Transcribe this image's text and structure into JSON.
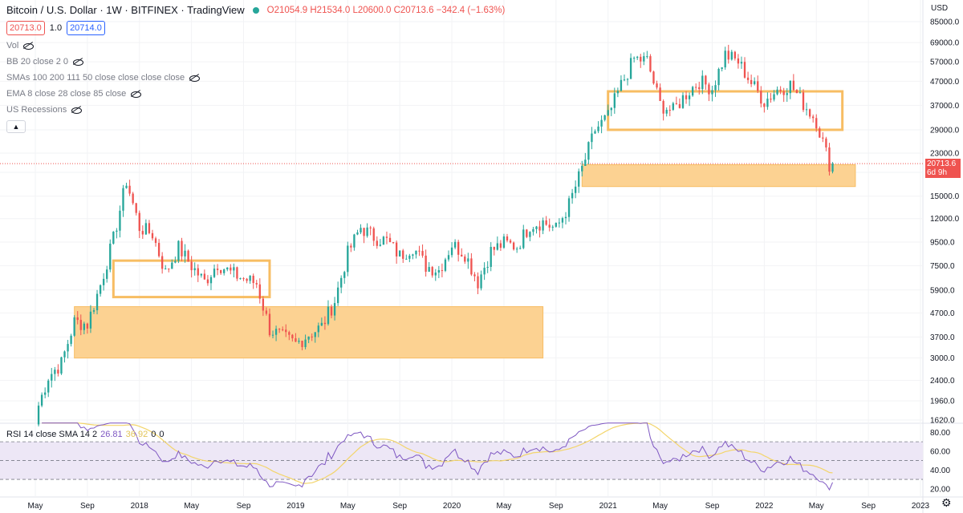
{
  "header": {
    "title": "Bitcoin / U.S. Dollar · 1W · BITFINEX · TradingView",
    "ohlc": "O21054.9 H21534.0 L20600.0 C20713.6 −342.4 (−1.63%)",
    "sell_box": "20713.0",
    "spread": "1.0",
    "buy_box": "20714.0",
    "currency": "USD"
  },
  "indicators": [
    "Vol",
    "BB 20 close 2 0",
    "SMAs 100 200 111 50 close close close close",
    "EMA 8 close 28 close 85 close",
    "US Recessions"
  ],
  "rsi_legend": {
    "label": "RSI 14 close SMA 14 2",
    "rsi": "26.81",
    "sma": "36.92",
    "z1": "0",
    "z2": "0"
  },
  "price_label": {
    "value": "20713.6",
    "countdown": "6d 9h"
  },
  "colors": {
    "up": "#26a69a",
    "down": "#ef5350",
    "zone_fill": "#fcd08c",
    "zone_stroke": "#f7bd63",
    "rsi_line": "#7e57c2",
    "rsi_sma": "#f3d56b",
    "rsi_band": "#ede7f6"
  },
  "chart_data": {
    "type": "candlestick",
    "title": "",
    "y_scale": "log",
    "y_ticks": [
      1620,
      1960,
      2400,
      3000,
      3700,
      4700,
      5900,
      7500,
      9500,
      12000,
      15000,
      19000,
      23000,
      29000,
      37000,
      47000,
      57000,
      69000,
      85000
    ],
    "y_tick_labels": [
      "1620.0",
      "1960.0",
      "2400.0",
      "3000.0",
      "3700.0",
      "4700.0",
      "5900.0",
      "7500.0",
      "9500.0",
      "12000.0",
      "15000.0",
      "19000.0",
      "23000.0",
      "29000.0",
      "37000.0",
      "47000.0",
      "57000.0",
      "69000.0",
      "85000.0"
    ],
    "x_tick_labels": [
      "May",
      "Sep",
      "2018",
      "May",
      "Sep",
      "2019",
      "May",
      "Sep",
      "2020",
      "May",
      "Sep",
      "2021",
      "May",
      "Sep",
      "2022",
      "May",
      "Sep",
      "2023"
    ],
    "x_ticks": [
      "2017-05",
      "2017-09",
      "2018-01",
      "2018-05",
      "2018-09",
      "2019-01",
      "2019-05",
      "2019-09",
      "2020-01",
      "2020-05",
      "2020-09",
      "2021-01",
      "2021-05",
      "2021-09",
      "2022-01",
      "2022-05",
      "2022-09",
      "2023-01"
    ],
    "last_price": 20713.6,
    "closes": [
      [
        "2017-05",
        1700
      ],
      [
        "2017-06",
        2500
      ],
      [
        "2017-07",
        2850
      ],
      [
        "2017-08",
        4300
      ],
      [
        "2017-09",
        4200
      ],
      [
        "2017-10",
        6200
      ],
      [
        "2017-11",
        9800
      ],
      [
        "2017-12",
        17500
      ],
      [
        "2018-01",
        11000
      ],
      [
        "2018-02",
        10300
      ],
      [
        "2018-03",
        7000
      ],
      [
        "2018-04",
        9000
      ],
      [
        "2018-05",
        7500
      ],
      [
        "2018-06",
        6400
      ],
      [
        "2018-07",
        7700
      ],
      [
        "2018-08",
        7000
      ],
      [
        "2018-09",
        6600
      ],
      [
        "2018-10",
        6300
      ],
      [
        "2018-11",
        4000
      ],
      [
        "2018-12",
        3700
      ],
      [
        "2019-01",
        3450
      ],
      [
        "2019-02",
        3800
      ],
      [
        "2019-03",
        4100
      ],
      [
        "2019-04",
        5300
      ],
      [
        "2019-05",
        8500
      ],
      [
        "2019-06",
        11000
      ],
      [
        "2019-07",
        10000
      ],
      [
        "2019-08",
        9600
      ],
      [
        "2019-09",
        8300
      ],
      [
        "2019-10",
        9100
      ],
      [
        "2019-11",
        7500
      ],
      [
        "2019-12",
        7200
      ],
      [
        "2020-01",
        9300
      ],
      [
        "2020-02",
        8500
      ],
      [
        "2020-03",
        6400
      ],
      [
        "2020-04",
        8700
      ],
      [
        "2020-05",
        9400
      ],
      [
        "2020-06",
        9100
      ],
      [
        "2020-07",
        11300
      ],
      [
        "2020-08",
        11600
      ],
      [
        "2020-09",
        10800
      ],
      [
        "2020-10",
        13800
      ],
      [
        "2020-11",
        19700
      ],
      [
        "2020-12",
        29000
      ],
      [
        "2021-01",
        33100
      ],
      [
        "2021-02",
        45200
      ],
      [
        "2021-03",
        58800
      ],
      [
        "2021-04",
        57700
      ],
      [
        "2021-05",
        37300
      ],
      [
        "2021-06",
        35000
      ],
      [
        "2021-07",
        41500
      ],
      [
        "2021-08",
        47100
      ],
      [
        "2021-09",
        43800
      ],
      [
        "2021-10",
        61300
      ],
      [
        "2021-11",
        57000
      ],
      [
        "2021-12",
        46300
      ],
      [
        "2022-01",
        38500
      ],
      [
        "2022-02",
        43200
      ],
      [
        "2022-03",
        45500
      ],
      [
        "2022-04",
        37700
      ],
      [
        "2022-05",
        31800
      ],
      [
        "2022-06",
        20700
      ]
    ],
    "zones": [
      {
        "from": "2017-08",
        "to": "2020-08",
        "low": 3000,
        "high": 5000
      },
      {
        "from": "2017-11",
        "to": "2018-11",
        "low": 5500,
        "high": 7900
      },
      {
        "from": "2021-01",
        "to": "2022-07",
        "low": 29000,
        "high": 42500
      },
      {
        "from": "2020-11",
        "to": "2022-08",
        "low": 16500,
        "high": 20500
      }
    ],
    "rsi": {
      "y_ticks": [
        20,
        40,
        60,
        80
      ],
      "y_tick_labels": [
        "20.00",
        "40.00",
        "60.00",
        "80.00"
      ],
      "upper": 70,
      "lower": 30,
      "last_rsi": 26.81,
      "last_sma": 36.92
    }
  }
}
